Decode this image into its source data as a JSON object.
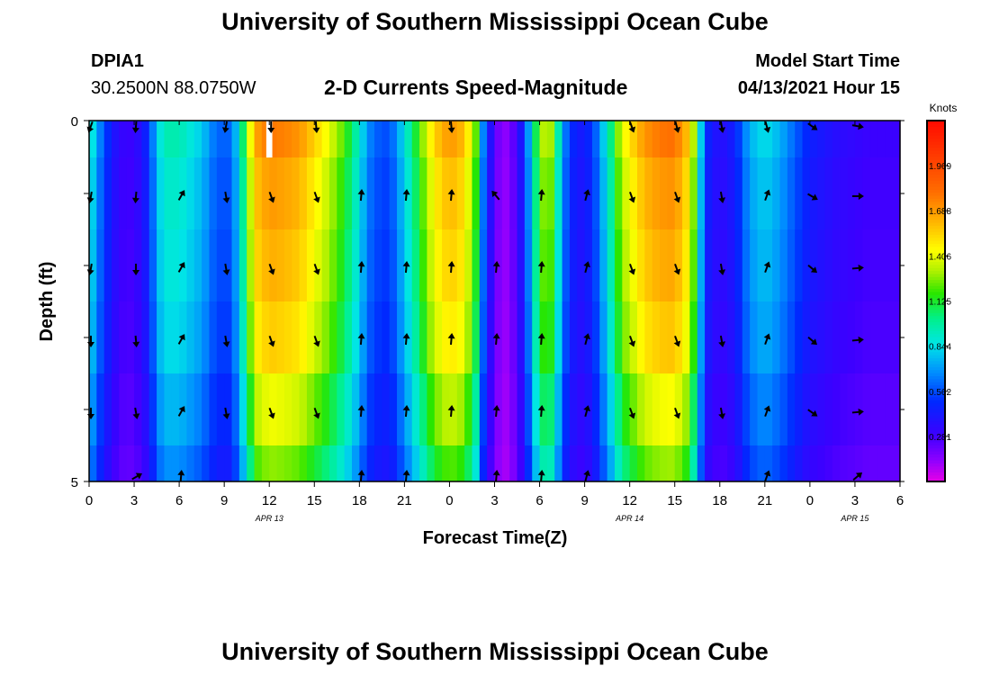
{
  "header": {
    "title_top": "University of Southern Mississippi Ocean Cube",
    "title_bottom": "University of Southern Mississippi Ocean Cube",
    "station_id": "DPIA1",
    "station_coords": "30.2500N  88.0750W",
    "subtitle": "2-D Currents Speed-Magnitude",
    "model_label": "Model Start Time",
    "model_time": "04/13/2021 Hour 15"
  },
  "colors": {
    "frame": "#000000",
    "arrow": "#000000",
    "missing": "#ffffff"
  },
  "chart_data": {
    "type": "heatmap",
    "title": "2-D Currents Speed-Magnitude",
    "xlabel": "Forecast Time(Z)",
    "ylabel": "Depth (ft)",
    "ylim": [
      0,
      5
    ],
    "y_ticks": [
      "0",
      "5"
    ],
    "x_ticks": [
      "0",
      "3",
      "6",
      "9",
      "12",
      "15",
      "18",
      "21",
      "0",
      "3",
      "6",
      "9",
      "12",
      "15",
      "18",
      "21",
      "0",
      "3",
      "6"
    ],
    "x_hours_range": [
      0,
      54
    ],
    "date_labels": [
      {
        "label": "APR 13",
        "hour": 12
      },
      {
        "label": "APR 14",
        "hour": 36
      },
      {
        "label": "APR 15",
        "hour": 51
      }
    ],
    "colorbar": {
      "title": "Knots",
      "range": [
        0,
        2.25
      ],
      "ticks": [
        "1.969",
        "1.688",
        "1.406",
        "1.125",
        "0.844",
        "0.562",
        "0.281"
      ],
      "tick_values": [
        1.969,
        1.688,
        1.406,
        1.125,
        0.844,
        0.562,
        0.281
      ]
    },
    "depth_levels": 5,
    "missing_cells": [
      {
        "hour": 12,
        "layer": 0
      }
    ],
    "speed_profile": [
      [
        0,
        0.95
      ],
      [
        0.5,
        0.75
      ],
      [
        1,
        0.55
      ],
      [
        1.5,
        0.45
      ],
      [
        2,
        0.32
      ],
      [
        3,
        0.3
      ],
      [
        4,
        0.5
      ],
      [
        4.5,
        0.8
      ],
      [
        5,
        0.95
      ],
      [
        6,
        0.95
      ],
      [
        7.5,
        0.8
      ],
      [
        8.5,
        0.6
      ],
      [
        9.5,
        0.6
      ],
      [
        10.5,
        1.2
      ],
      [
        11,
        1.65
      ],
      [
        12,
        1.78
      ],
      [
        13,
        1.75
      ],
      [
        14,
        1.7
      ],
      [
        15,
        1.55
      ],
      [
        16,
        1.4
      ],
      [
        17,
        1.2
      ],
      [
        18,
        0.9
      ],
      [
        18.5,
        0.7
      ],
      [
        19,
        0.6
      ],
      [
        20,
        0.55
      ],
      [
        21,
        0.85
      ],
      [
        22,
        1.2
      ],
      [
        23,
        1.55
      ],
      [
        24,
        1.7
      ],
      [
        25,
        1.6
      ],
      [
        25.8,
        1.2
      ],
      [
        26.3,
        0.6
      ],
      [
        27,
        0.25
      ],
      [
        27.5,
        0.12
      ],
      [
        28,
        0.15
      ],
      [
        28.5,
        0.3
      ],
      [
        29,
        0.5
      ],
      [
        29.5,
        0.9
      ],
      [
        30,
        1.25
      ],
      [
        30.5,
        1.4
      ],
      [
        31,
        1.2
      ],
      [
        31.5,
        0.7
      ],
      [
        32.5,
        0.4
      ],
      [
        33.5,
        0.5
      ],
      [
        34.5,
        0.9
      ],
      [
        35.5,
        1.4
      ],
      [
        37,
        1.7
      ],
      [
        38,
        1.78
      ],
      [
        39,
        1.8
      ],
      [
        40,
        1.55
      ],
      [
        40.5,
        1.1
      ],
      [
        41,
        0.5
      ],
      [
        42,
        0.35
      ],
      [
        43,
        0.45
      ],
      [
        44,
        0.75
      ],
      [
        45,
        0.85
      ],
      [
        46,
        0.75
      ],
      [
        47,
        0.6
      ],
      [
        48,
        0.45
      ],
      [
        50,
        0.35
      ],
      [
        52,
        0.3
      ],
      [
        54,
        0.3
      ]
    ],
    "layer_factor": [
      1.0,
      0.95,
      0.92,
      0.88,
      0.8,
      0.72
    ],
    "arrow_hours": [
      0,
      3,
      6,
      9,
      12,
      15,
      18,
      21,
      24,
      27,
      30,
      33,
      36,
      39,
      42,
      45,
      48,
      51
    ],
    "arrow_directions": [
      [
        200,
        185,
        null,
        190,
        180,
        175,
        null,
        null,
        175,
        null,
        null,
        null,
        160,
        165,
        170,
        165,
        125,
        100
      ],
      [
        190,
        185,
        30,
        170,
        160,
        160,
        5,
        5,
        5,
        320,
        5,
        15,
        160,
        160,
        170,
        20,
        120,
        90
      ],
      [
        190,
        180,
        30,
        170,
        160,
        160,
        5,
        5,
        5,
        5,
        5,
        15,
        160,
        160,
        170,
        20,
        130,
        85
      ],
      [
        180,
        175,
        30,
        170,
        160,
        160,
        5,
        5,
        5,
        5,
        5,
        15,
        160,
        160,
        170,
        20,
        130,
        85
      ],
      [
        180,
        170,
        30,
        170,
        160,
        160,
        5,
        5,
        5,
        5,
        5,
        15,
        160,
        160,
        170,
        20,
        125,
        85
      ],
      [
        null,
        60,
        5,
        null,
        null,
        null,
        5,
        5,
        null,
        5,
        5,
        15,
        null,
        null,
        null,
        20,
        null,
        50
      ]
    ]
  }
}
